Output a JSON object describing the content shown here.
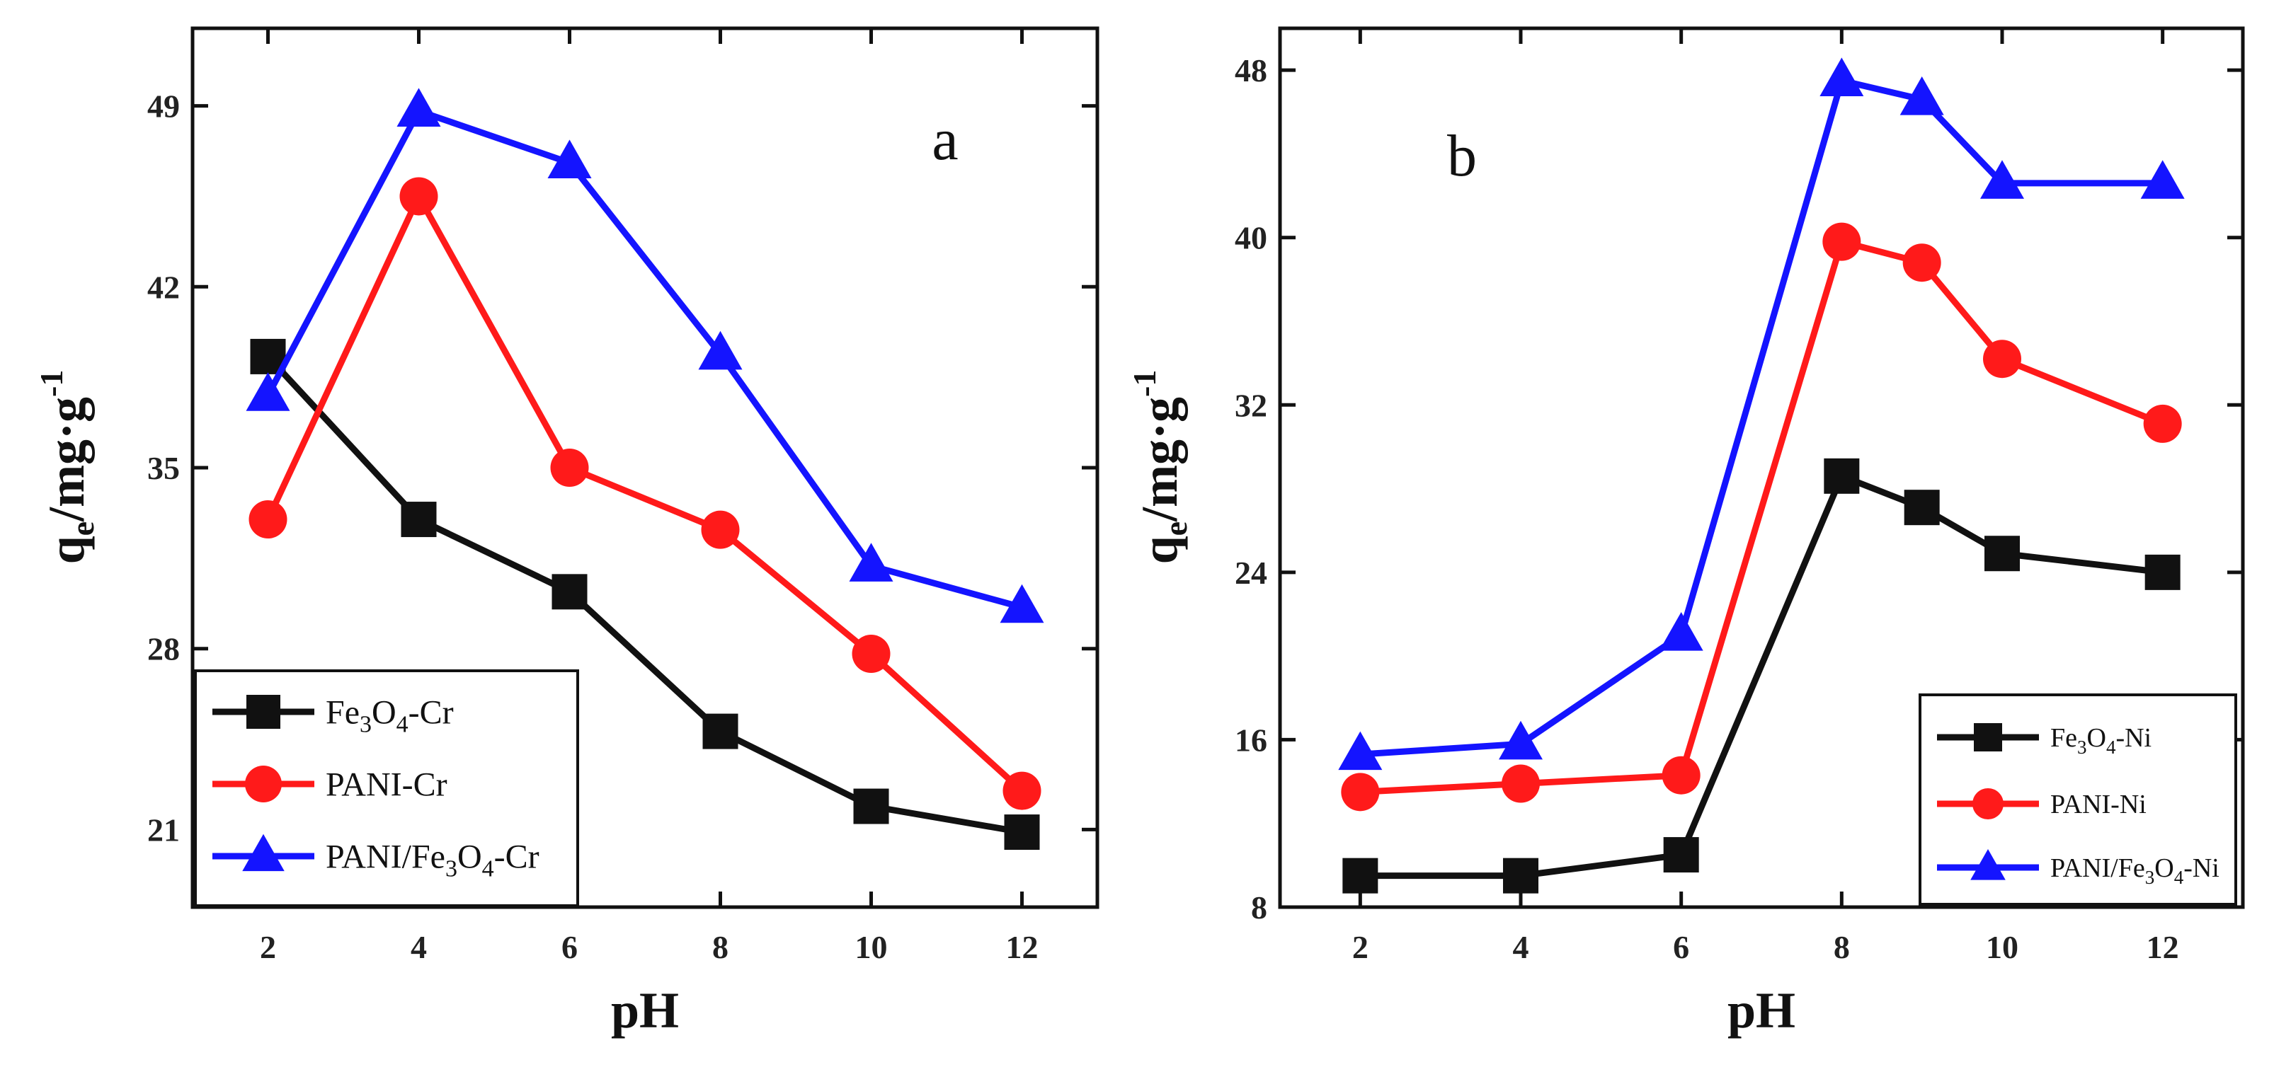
{
  "chart_data": [
    {
      "type": "line",
      "panel_label": "a",
      "xlabel": "pH",
      "ylabel_base": "q",
      "ylabel_sub": "e",
      "ylabel_rest": "/mg·g",
      "ylabel_sup": "-1",
      "xlim": [
        1,
        13
      ],
      "ylim": [
        18,
        52
      ],
      "xticks": [
        2,
        4,
        6,
        8,
        10,
        12
      ],
      "yticks": [
        21,
        28,
        35,
        42,
        49
      ],
      "grid": false,
      "legend_position": "bottom-left",
      "series": [
        {
          "name": "Fe3O4-Cr",
          "name_main": "Fe",
          "name_sub1": "3",
          "name_mid": "O",
          "name_sub2": "4",
          "name_tail": "-Cr",
          "color": "#111111",
          "marker": "square",
          "x": [
            2,
            4,
            6,
            8,
            10,
            12
          ],
          "y": [
            39.3,
            33.0,
            30.2,
            24.8,
            21.9,
            20.9
          ]
        },
        {
          "name": "PANI-Cr",
          "name_main": "PANI-Cr",
          "color": "#ff1a1a",
          "marker": "circle",
          "x": [
            2,
            4,
            6,
            8,
            10,
            12
          ],
          "y": [
            33.0,
            45.5,
            35.0,
            32.6,
            27.8,
            22.5
          ]
        },
        {
          "name": "PANI/Fe3O4-Cr",
          "name_main": "PANI/Fe",
          "name_sub1": "3",
          "name_mid": "O",
          "name_sub2": "4",
          "name_tail": "-Cr",
          "color": "#1414ff",
          "marker": "triangle",
          "x": [
            2,
            4,
            6,
            8,
            10,
            12
          ],
          "y": [
            37.8,
            48.8,
            46.8,
            39.4,
            31.2,
            29.6
          ]
        }
      ]
    },
    {
      "type": "line",
      "panel_label": "b",
      "xlabel": "pH",
      "ylabel_base": "q",
      "ylabel_sub": "e",
      "ylabel_rest": "/mg·g",
      "ylabel_sup": "-1",
      "xlim": [
        1,
        13
      ],
      "ylim": [
        8,
        50
      ],
      "xticks": [
        2,
        4,
        6,
        8,
        10,
        12
      ],
      "yticks": [
        8,
        16,
        24,
        32,
        40,
        48
      ],
      "grid": false,
      "legend_position": "bottom-right",
      "series": [
        {
          "name": "Fe3O4-Ni",
          "name_main": "Fe",
          "name_sub1": "3",
          "name_mid": "O",
          "name_sub2": "4",
          "name_tail": "-Ni",
          "color": "#111111",
          "marker": "square",
          "x": [
            2,
            4,
            6,
            8,
            9,
            10,
            12
          ],
          "y": [
            9.5,
            9.5,
            10.5,
            28.6,
            27.1,
            24.9,
            24.0
          ]
        },
        {
          "name": "PANI-Ni",
          "name_main": "PANI-Ni",
          "color": "#ff1a1a",
          "marker": "circle",
          "x": [
            2,
            4,
            6,
            8,
            9,
            10,
            12
          ],
          "y": [
            13.5,
            13.9,
            14.3,
            39.8,
            38.8,
            34.2,
            31.1
          ]
        },
        {
          "name": "PANI/Fe3O4-Ni",
          "name_main": "PANI/Fe",
          "name_sub1": "3",
          "name_mid": "O",
          "name_sub2": "4",
          "name_tail": "-Ni",
          "color": "#1414ff",
          "marker": "triangle",
          "x": [
            2,
            4,
            6,
            8,
            9,
            10,
            12
          ],
          "y": [
            15.3,
            15.8,
            21.0,
            47.5,
            46.6,
            42.6,
            42.6
          ]
        }
      ]
    }
  ]
}
